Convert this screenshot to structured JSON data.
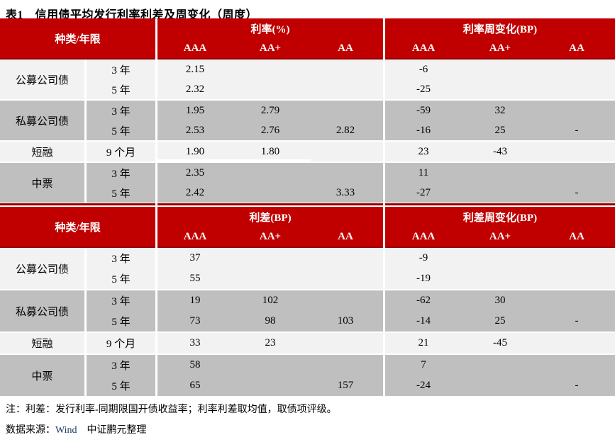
{
  "title": "表1　信用债平均发行利率利差及周变化（周度）",
  "colors": {
    "header_red": "#C00000",
    "dark_red_line": "#990000",
    "row_light": "#F2F2F2",
    "row_dark": "#BFBFBF",
    "wind_blue": "#17375E"
  },
  "tables": [
    {
      "corner_label": "种类/年限",
      "left_section_label": "利率(%)",
      "right_section_label": "利率周变化(BP)",
      "rating_columns": [
        "AAA",
        "AA+",
        "AA"
      ],
      "groups": [
        {
          "category": "公募公司债",
          "shade": "light",
          "rows": [
            {
              "term": "3 年",
              "left": [
                "2.15",
                "",
                ""
              ],
              "right": [
                "-6",
                "",
                ""
              ]
            },
            {
              "term": "5 年",
              "left": [
                "2.32",
                "",
                ""
              ],
              "right": [
                "-25",
                "",
                ""
              ]
            }
          ]
        },
        {
          "category": "私募公司债",
          "shade": "dark",
          "rows": [
            {
              "term": "3 年",
              "left": [
                "1.95",
                "2.79",
                ""
              ],
              "right": [
                "-59",
                "32",
                ""
              ]
            },
            {
              "term": "5 年",
              "left": [
                "2.53",
                "2.76",
                "2.82"
              ],
              "right": [
                "-16",
                "25",
                "-"
              ]
            }
          ]
        },
        {
          "category": "短融",
          "shade": "light",
          "rows": [
            {
              "term": "9 个月",
              "left": [
                "1.90",
                "1.80",
                ""
              ],
              "right": [
                "23",
                "-43",
                ""
              ]
            }
          ]
        },
        {
          "category": "中票",
          "shade": "dark",
          "rows": [
            {
              "term": "3 年",
              "left": [
                "2.35",
                "",
                ""
              ],
              "right": [
                "11",
                "",
                ""
              ]
            },
            {
              "term": "5 年",
              "left": [
                "2.42",
                "",
                "3.33"
              ],
              "right": [
                "-27",
                "",
                "-"
              ]
            }
          ]
        }
      ]
    },
    {
      "corner_label": "种类/年限",
      "left_section_label": "利差(BP)",
      "right_section_label": "利差周变化(BP)",
      "rating_columns": [
        "AAA",
        "AA+",
        "AA"
      ],
      "groups": [
        {
          "category": "公募公司债",
          "shade": "light",
          "rows": [
            {
              "term": "3 年",
              "left": [
                "37",
                "",
                ""
              ],
              "right": [
                "-9",
                "",
                ""
              ]
            },
            {
              "term": "5 年",
              "left": [
                "55",
                "",
                ""
              ],
              "right": [
                "-19",
                "",
                ""
              ]
            }
          ]
        },
        {
          "category": "私募公司债",
          "shade": "dark",
          "rows": [
            {
              "term": "3 年",
              "left": [
                "19",
                "102",
                ""
              ],
              "right": [
                "-62",
                "30",
                ""
              ]
            },
            {
              "term": "5 年",
              "left": [
                "73",
                "98",
                "103"
              ],
              "right": [
                "-14",
                "25",
                "-"
              ]
            }
          ]
        },
        {
          "category": "短融",
          "shade": "light",
          "rows": [
            {
              "term": "9 个月",
              "left": [
                "33",
                "23",
                ""
              ],
              "right": [
                "21",
                "-45",
                ""
              ]
            }
          ]
        },
        {
          "category": "中票",
          "shade": "dark",
          "rows": [
            {
              "term": "3 年",
              "left": [
                "58",
                "",
                ""
              ],
              "right": [
                "7",
                "",
                ""
              ]
            },
            {
              "term": "5 年",
              "left": [
                "65",
                "",
                "157"
              ],
              "right": [
                "-24",
                "",
                "-"
              ]
            }
          ]
        }
      ]
    }
  ],
  "footnote": "注：利差：发行利率-同期限国开债收益率；利率利差取均值，取债项评级。",
  "source": {
    "prefix": "数据来源：",
    "wind": "Wind",
    "org": "中证鹏元整理"
  }
}
